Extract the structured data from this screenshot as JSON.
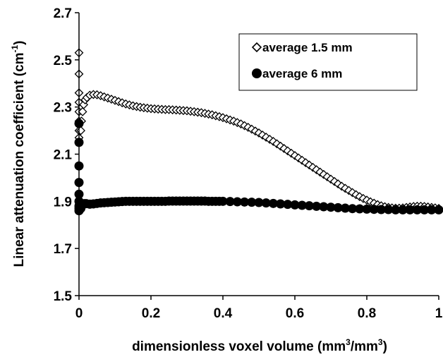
{
  "chart_data": {
    "type": "scatter",
    "xlabel_parts": [
      "dimensionless voxel volume (mm",
      "3",
      "/mm",
      "3",
      ")"
    ],
    "ylabel_parts": [
      "Linear attenuation coefficient (cm",
      "-1",
      ")"
    ],
    "xlim": [
      0,
      1
    ],
    "ylim": [
      1.5,
      2.7
    ],
    "xticks": [
      "0",
      "0.2",
      "0.4",
      "0.6",
      "0.8",
      "1"
    ],
    "yticks": [
      "1.5",
      "1.7",
      "1.9",
      "2.1",
      "2.3",
      "2.5",
      "2.7"
    ],
    "legend_position": "top-right",
    "grid": false,
    "series": [
      {
        "name": "average 1.5 mm",
        "marker": "diamond-open",
        "points": [
          [
            0.0,
            2.53
          ],
          [
            0.0,
            2.44
          ],
          [
            0.0,
            2.36
          ],
          [
            0.0,
            2.32
          ],
          [
            0.0,
            2.28
          ],
          [
            0.0,
            2.24
          ],
          [
            0.0,
            2.2
          ],
          [
            0.0,
            2.17
          ],
          [
            0.005,
            2.2
          ],
          [
            0.007,
            2.24
          ],
          [
            0.01,
            2.28
          ],
          [
            0.013,
            2.31
          ],
          [
            0.017,
            2.33
          ],
          [
            0.022,
            2.34
          ],
          [
            0.03,
            2.35
          ],
          [
            0.04,
            2.353
          ],
          [
            0.05,
            2.352
          ],
          [
            0.06,
            2.348
          ],
          [
            0.07,
            2.343
          ],
          [
            0.08,
            2.338
          ],
          [
            0.09,
            2.333
          ],
          [
            0.1,
            2.328
          ],
          [
            0.11,
            2.323
          ],
          [
            0.12,
            2.318
          ],
          [
            0.13,
            2.313
          ],
          [
            0.14,
            2.309
          ],
          [
            0.15,
            2.305
          ],
          [
            0.16,
            2.302
          ],
          [
            0.17,
            2.299
          ],
          [
            0.18,
            2.297
          ],
          [
            0.19,
            2.295
          ],
          [
            0.2,
            2.293
          ],
          [
            0.21,
            2.292
          ],
          [
            0.22,
            2.291
          ],
          [
            0.23,
            2.29
          ],
          [
            0.24,
            2.289
          ],
          [
            0.25,
            2.289
          ],
          [
            0.26,
            2.288
          ],
          [
            0.27,
            2.287
          ],
          [
            0.28,
            2.286
          ],
          [
            0.29,
            2.285
          ],
          [
            0.3,
            2.284
          ],
          [
            0.31,
            2.282
          ],
          [
            0.32,
            2.28
          ],
          [
            0.33,
            2.278
          ],
          [
            0.34,
            2.276
          ],
          [
            0.35,
            2.273
          ],
          [
            0.36,
            2.27
          ],
          [
            0.37,
            2.267
          ],
          [
            0.38,
            2.263
          ],
          [
            0.39,
            2.259
          ],
          [
            0.4,
            2.255
          ],
          [
            0.41,
            2.25
          ],
          [
            0.42,
            2.245
          ],
          [
            0.43,
            2.24
          ],
          [
            0.44,
            2.234
          ],
          [
            0.45,
            2.228
          ],
          [
            0.46,
            2.221
          ],
          [
            0.47,
            2.214
          ],
          [
            0.48,
            2.206
          ],
          [
            0.49,
            2.198
          ],
          [
            0.5,
            2.19
          ],
          [
            0.51,
            2.181
          ],
          [
            0.52,
            2.172
          ],
          [
            0.53,
            2.163
          ],
          [
            0.54,
            2.154
          ],
          [
            0.55,
            2.144
          ],
          [
            0.56,
            2.134
          ],
          [
            0.57,
            2.124
          ],
          [
            0.58,
            2.114
          ],
          [
            0.59,
            2.104
          ],
          [
            0.6,
            2.094
          ],
          [
            0.61,
            2.084
          ],
          [
            0.62,
            2.074
          ],
          [
            0.63,
            2.064
          ],
          [
            0.64,
            2.054
          ],
          [
            0.65,
            2.044
          ],
          [
            0.66,
            2.034
          ],
          [
            0.67,
            2.024
          ],
          [
            0.68,
            2.014
          ],
          [
            0.69,
            2.004
          ],
          [
            0.7,
            1.994
          ],
          [
            0.71,
            1.984
          ],
          [
            0.72,
            1.974
          ],
          [
            0.73,
            1.964
          ],
          [
            0.74,
            1.955
          ],
          [
            0.75,
            1.946
          ],
          [
            0.76,
            1.937
          ],
          [
            0.77,
            1.928
          ],
          [
            0.78,
            1.92
          ],
          [
            0.79,
            1.912
          ],
          [
            0.8,
            1.905
          ],
          [
            0.81,
            1.898
          ],
          [
            0.82,
            1.892
          ],
          [
            0.83,
            1.886
          ],
          [
            0.84,
            1.881
          ],
          [
            0.85,
            1.877
          ],
          [
            0.86,
            1.874
          ],
          [
            0.87,
            1.872
          ],
          [
            0.88,
            1.871
          ],
          [
            0.89,
            1.871
          ],
          [
            0.9,
            1.872
          ],
          [
            0.91,
            1.874
          ],
          [
            0.92,
            1.876
          ],
          [
            0.93,
            1.878
          ],
          [
            0.94,
            1.879
          ],
          [
            0.95,
            1.879
          ],
          [
            0.96,
            1.878
          ],
          [
            0.97,
            1.876
          ],
          [
            0.98,
            1.874
          ],
          [
            0.99,
            1.872
          ],
          [
            1.0,
            1.87
          ]
        ]
      },
      {
        "name": "average 6 mm",
        "marker": "circle-filled",
        "points": [
          [
            0.0,
            2.23
          ],
          [
            0.0,
            2.15
          ],
          [
            0.0,
            2.05
          ],
          [
            0.0,
            1.98
          ],
          [
            0.0,
            1.93
          ],
          [
            0.0,
            1.9
          ],
          [
            0.0,
            1.88
          ],
          [
            0.0,
            1.87
          ],
          [
            0.0,
            1.86
          ],
          [
            0.005,
            1.87
          ],
          [
            0.01,
            1.885
          ],
          [
            0.015,
            1.89
          ],
          [
            0.02,
            1.89
          ],
          [
            0.03,
            1.888
          ],
          [
            0.04,
            1.889
          ],
          [
            0.05,
            1.891
          ],
          [
            0.06,
            1.893
          ],
          [
            0.07,
            1.894
          ],
          [
            0.08,
            1.895
          ],
          [
            0.09,
            1.896
          ],
          [
            0.1,
            1.897
          ],
          [
            0.11,
            1.898
          ],
          [
            0.12,
            1.899
          ],
          [
            0.13,
            1.9
          ],
          [
            0.14,
            1.9
          ],
          [
            0.15,
            1.9
          ],
          [
            0.16,
            1.9
          ],
          [
            0.17,
            1.9
          ],
          [
            0.18,
            1.9
          ],
          [
            0.19,
            1.9
          ],
          [
            0.2,
            1.9
          ],
          [
            0.21,
            1.9
          ],
          [
            0.22,
            1.9
          ],
          [
            0.23,
            1.9
          ],
          [
            0.24,
            1.9
          ],
          [
            0.25,
            1.901
          ],
          [
            0.26,
            1.901
          ],
          [
            0.27,
            1.901
          ],
          [
            0.28,
            1.901
          ],
          [
            0.29,
            1.901
          ],
          [
            0.3,
            1.901
          ],
          [
            0.31,
            1.901
          ],
          [
            0.32,
            1.901
          ],
          [
            0.33,
            1.901
          ],
          [
            0.34,
            1.901
          ],
          [
            0.35,
            1.901
          ],
          [
            0.36,
            1.9
          ],
          [
            0.37,
            1.9
          ],
          [
            0.38,
            1.9
          ],
          [
            0.39,
            1.9
          ],
          [
            0.4,
            1.9
          ],
          [
            0.42,
            1.899
          ],
          [
            0.44,
            1.898
          ],
          [
            0.46,
            1.897
          ],
          [
            0.48,
            1.896
          ],
          [
            0.5,
            1.895
          ],
          [
            0.52,
            1.893
          ],
          [
            0.54,
            1.891
          ],
          [
            0.56,
            1.889
          ],
          [
            0.58,
            1.887
          ],
          [
            0.6,
            1.885
          ],
          [
            0.62,
            1.883
          ],
          [
            0.64,
            1.881
          ],
          [
            0.66,
            1.879
          ],
          [
            0.68,
            1.877
          ],
          [
            0.7,
            1.875
          ],
          [
            0.72,
            1.873
          ],
          [
            0.74,
            1.871
          ],
          [
            0.76,
            1.869
          ],
          [
            0.78,
            1.868
          ],
          [
            0.8,
            1.867
          ],
          [
            0.82,
            1.866
          ],
          [
            0.84,
            1.865
          ],
          [
            0.86,
            1.865
          ],
          [
            0.88,
            1.864
          ],
          [
            0.9,
            1.864
          ],
          [
            0.92,
            1.864
          ],
          [
            0.94,
            1.864
          ],
          [
            0.96,
            1.864
          ],
          [
            0.98,
            1.864
          ],
          [
            1.0,
            1.864
          ]
        ]
      }
    ]
  }
}
